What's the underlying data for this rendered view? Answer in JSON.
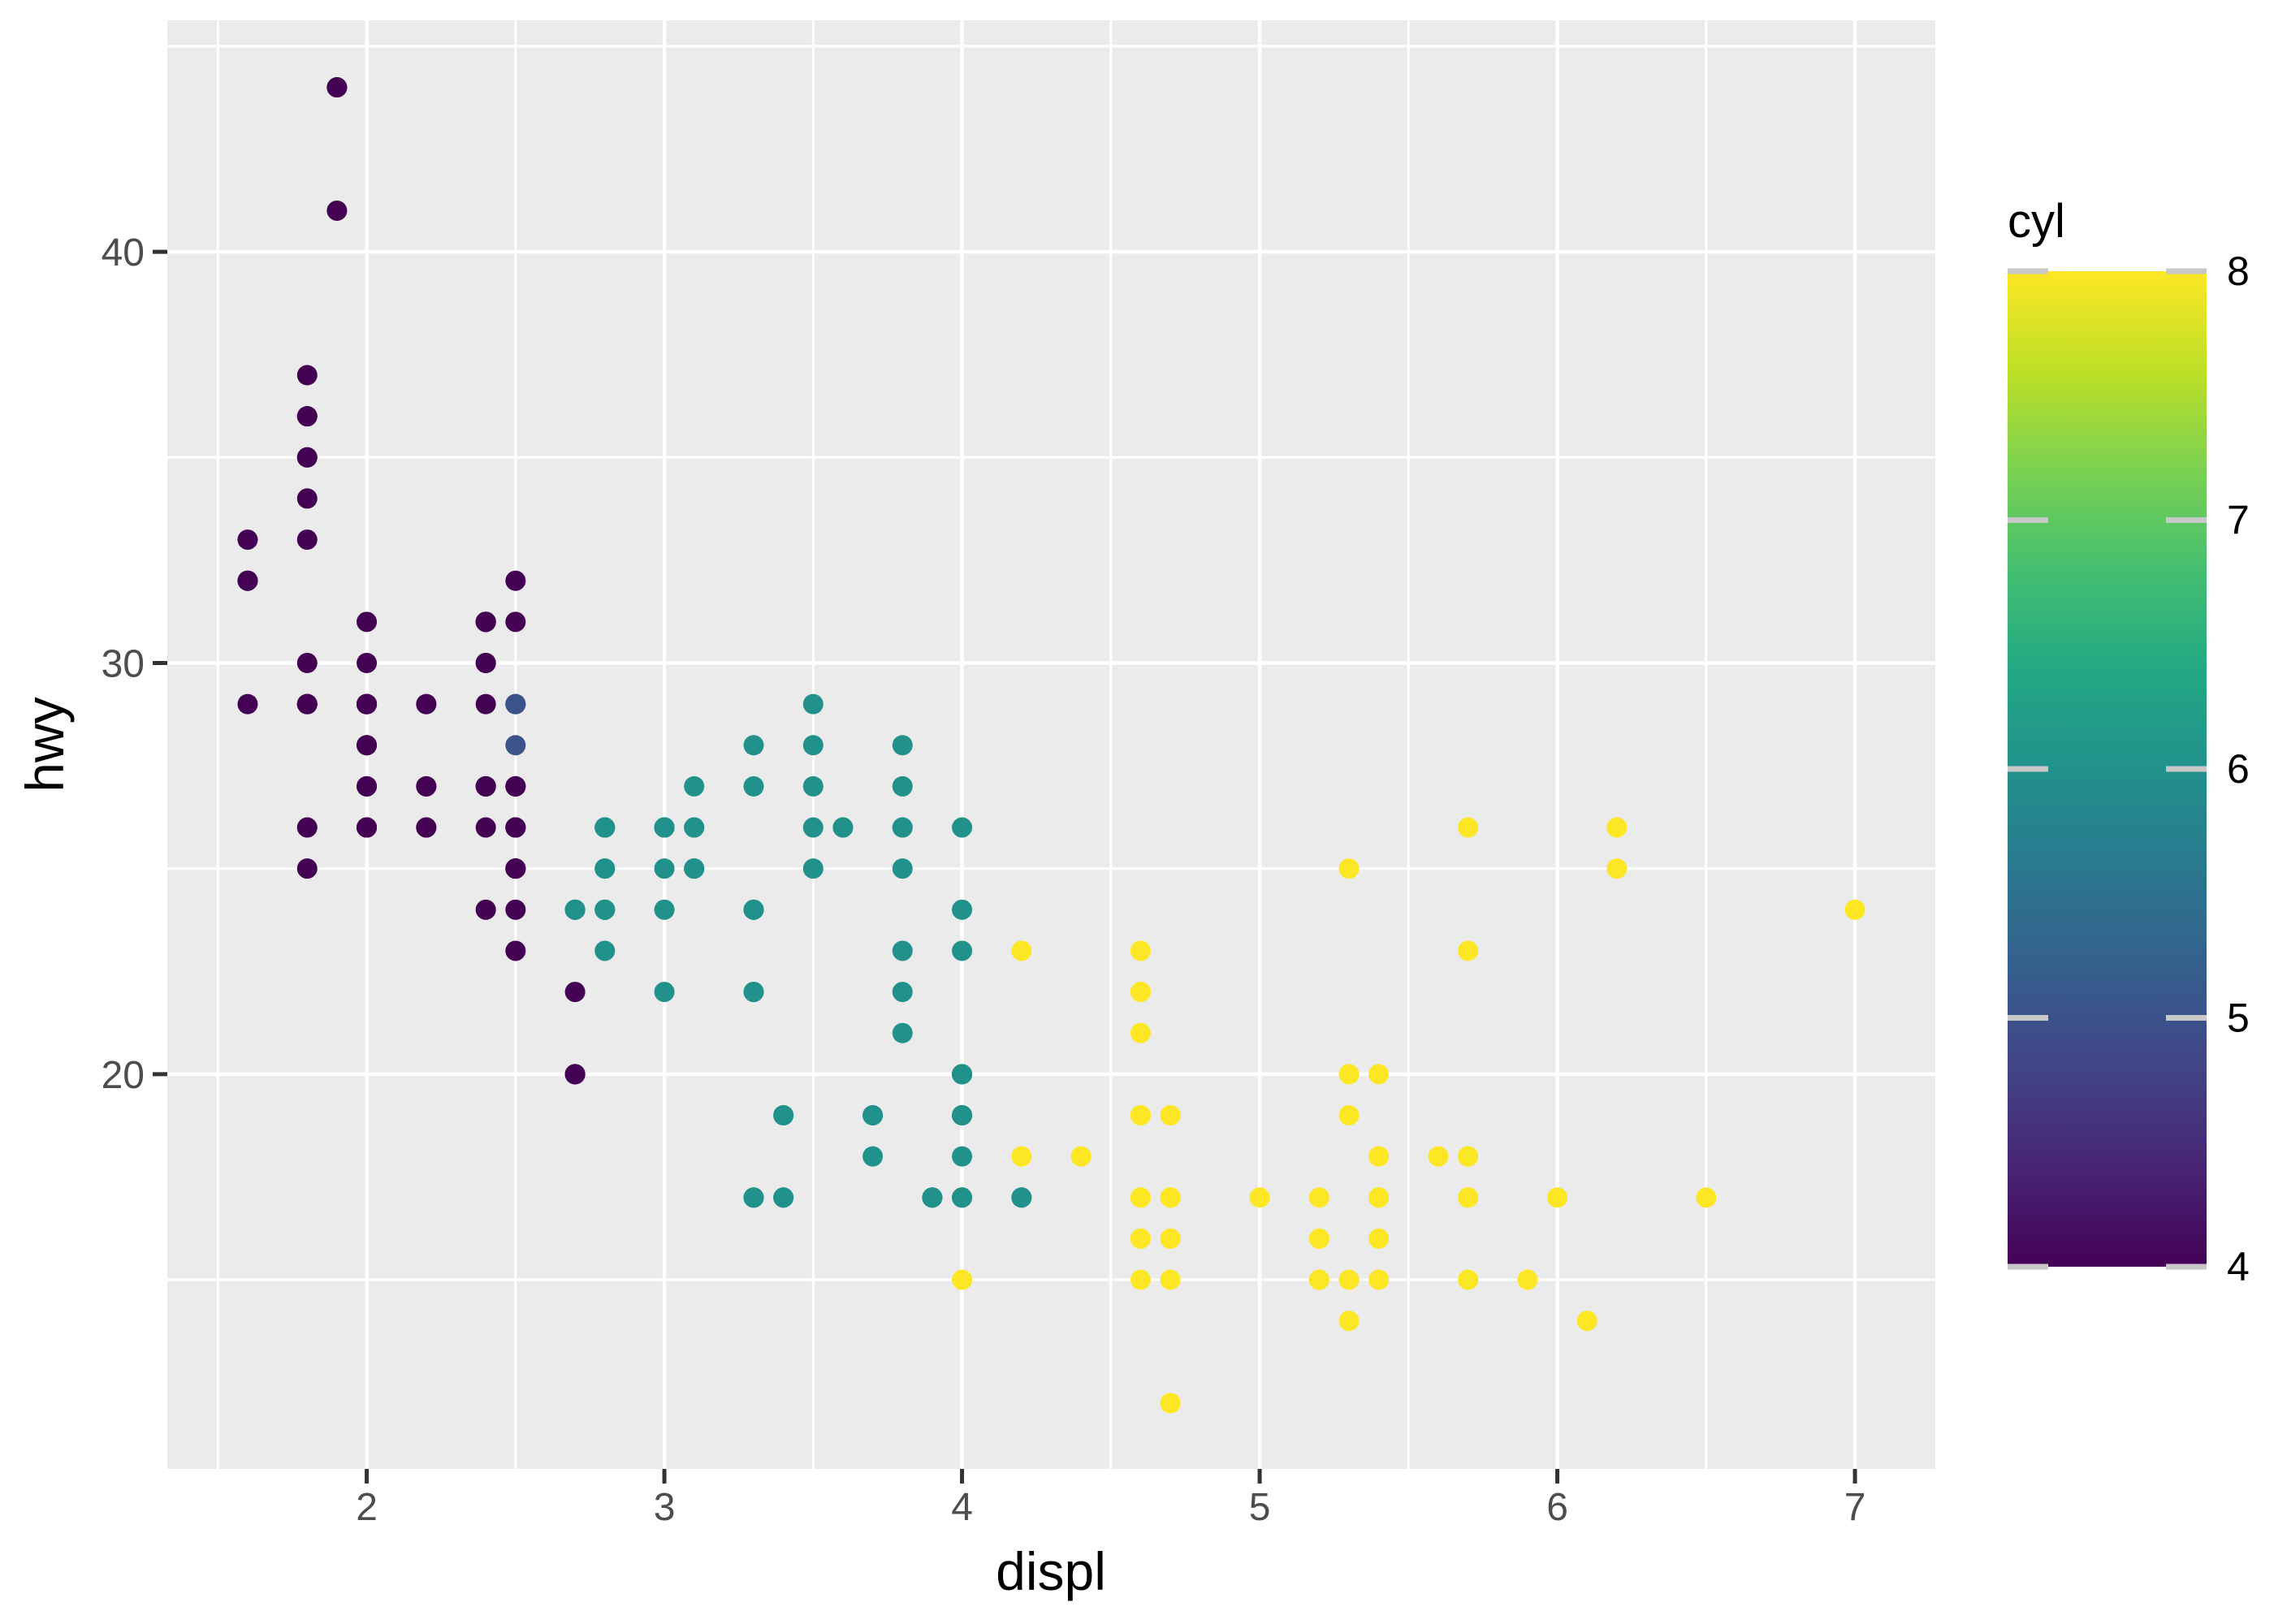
{
  "chart_data": {
    "type": "scatter",
    "title": "",
    "xlabel": "displ",
    "ylabel": "hwy",
    "xlim": [
      1.33,
      7.27
    ],
    "ylim": [
      10.4,
      45.63
    ],
    "x_major_ticks": [
      2,
      3,
      4,
      5,
      6,
      7
    ],
    "x_major_labels": [
      "2",
      "3",
      "4",
      "5",
      "6",
      "7"
    ],
    "x_minor_ticks": [
      1.5,
      2.5,
      3.5,
      4.5,
      5.5,
      6.5
    ],
    "y_major_ticks": [
      20,
      30,
      40
    ],
    "y_major_labels": [
      "20",
      "30",
      "40"
    ],
    "y_minor_ticks": [
      15,
      25,
      35,
      45
    ],
    "grid": "on",
    "legend_position": "right",
    "series_name": "cyl",
    "color_scale": "viridis-continuous",
    "points_format": [
      "displ",
      "hwy",
      "cyl"
    ],
    "points": [
      [
        1.8,
        29,
        4
      ],
      [
        1.8,
        29,
        4
      ],
      [
        2.0,
        31,
        4
      ],
      [
        2.0,
        30,
        4
      ],
      [
        2.8,
        26,
        6
      ],
      [
        2.8,
        26,
        6
      ],
      [
        3.1,
        27,
        6
      ],
      [
        1.8,
        26,
        4
      ],
      [
        1.8,
        25,
        4
      ],
      [
        2.0,
        28,
        4
      ],
      [
        2.0,
        27,
        4
      ],
      [
        2.8,
        25,
        6
      ],
      [
        2.8,
        25,
        6
      ],
      [
        3.1,
        25,
        6
      ],
      [
        3.1,
        25,
        6
      ],
      [
        2.8,
        24,
        6
      ],
      [
        3.1,
        25,
        6
      ],
      [
        4.2,
        23,
        8
      ],
      [
        5.3,
        20,
        8
      ],
      [
        5.3,
        15,
        8
      ],
      [
        5.3,
        20,
        8
      ],
      [
        5.7,
        17,
        8
      ],
      [
        6.0,
        17,
        8
      ],
      [
        5.7,
        26,
        8
      ],
      [
        5.7,
        23,
        8
      ],
      [
        6.2,
        26,
        8
      ],
      [
        6.2,
        25,
        8
      ],
      [
        7.0,
        24,
        8
      ],
      [
        5.3,
        19,
        8
      ],
      [
        5.3,
        14,
        8
      ],
      [
        5.7,
        15,
        8
      ],
      [
        6.5,
        17,
        8
      ],
      [
        2.4,
        27,
        4
      ],
      [
        2.4,
        30,
        4
      ],
      [
        3.1,
        26,
        6
      ],
      [
        3.5,
        29,
        6
      ],
      [
        3.6,
        26,
        6
      ],
      [
        2.4,
        24,
        4
      ],
      [
        3.0,
        24,
        6
      ],
      [
        3.3,
        22,
        6
      ],
      [
        3.3,
        22,
        6
      ],
      [
        3.3,
        24,
        6
      ],
      [
        3.3,
        24,
        6
      ],
      [
        3.3,
        17,
        6
      ],
      [
        3.8,
        22,
        6
      ],
      [
        3.8,
        21,
        6
      ],
      [
        3.8,
        23,
        6
      ],
      [
        4.0,
        23,
        6
      ],
      [
        3.7,
        19,
        6
      ],
      [
        3.7,
        18,
        6
      ],
      [
        3.9,
        17,
        6
      ],
      [
        3.9,
        17,
        6
      ],
      [
        4.7,
        19,
        8
      ],
      [
        4.7,
        19,
        8
      ],
      [
        4.7,
        12,
        8
      ],
      [
        5.2,
        17,
        8
      ],
      [
        5.2,
        15,
        8
      ],
      [
        3.9,
        17,
        6
      ],
      [
        4.7,
        17,
        8
      ],
      [
        4.7,
        12,
        8
      ],
      [
        4.7,
        17,
        8
      ],
      [
        5.2,
        16,
        8
      ],
      [
        5.7,
        18,
        8
      ],
      [
        5.9,
        15,
        8
      ],
      [
        4.7,
        16,
        8
      ],
      [
        4.7,
        12,
        8
      ],
      [
        4.7,
        17,
        8
      ],
      [
        4.7,
        17,
        8
      ],
      [
        4.7,
        16,
        8
      ],
      [
        4.7,
        12,
        8
      ],
      [
        5.2,
        15,
        8
      ],
      [
        5.2,
        16,
        8
      ],
      [
        5.7,
        17,
        8
      ],
      [
        5.9,
        15,
        8
      ],
      [
        4.6,
        17,
        8
      ],
      [
        5.4,
        17,
        8
      ],
      [
        5.4,
        18,
        8
      ],
      [
        4.0,
        17,
        6
      ],
      [
        4.0,
        19,
        6
      ],
      [
        4.0,
        17,
        6
      ],
      [
        4.0,
        19,
        6
      ],
      [
        4.6,
        19,
        8
      ],
      [
        4.2,
        17,
        6
      ],
      [
        4.2,
        17,
        6
      ],
      [
        4.6,
        16,
        8
      ],
      [
        4.6,
        16,
        8
      ],
      [
        4.6,
        17,
        8
      ],
      [
        5.4,
        15,
        8
      ],
      [
        5.4,
        17,
        8
      ],
      [
        3.8,
        26,
        6
      ],
      [
        3.8,
        25,
        6
      ],
      [
        4.0,
        26,
        6
      ],
      [
        4.0,
        24,
        6
      ],
      [
        4.6,
        21,
        8
      ],
      [
        4.6,
        22,
        8
      ],
      [
        4.6,
        23,
        8
      ],
      [
        4.6,
        22,
        8
      ],
      [
        5.4,
        20,
        8
      ],
      [
        1.6,
        33,
        4
      ],
      [
        1.6,
        32,
        4
      ],
      [
        1.6,
        32,
        4
      ],
      [
        1.6,
        29,
        4
      ],
      [
        1.6,
        32,
        4
      ],
      [
        1.8,
        34,
        4
      ],
      [
        1.8,
        36,
        4
      ],
      [
        1.8,
        36,
        4
      ],
      [
        2.0,
        29,
        4
      ],
      [
        2.4,
        26,
        4
      ],
      [
        2.4,
        27,
        4
      ],
      [
        2.4,
        30,
        4
      ],
      [
        2.4,
        31,
        4
      ],
      [
        2.5,
        26,
        6
      ],
      [
        2.5,
        26,
        6
      ],
      [
        3.3,
        28,
        6
      ],
      [
        2.0,
        26,
        4
      ],
      [
        2.0,
        29,
        4
      ],
      [
        2.0,
        28,
        4
      ],
      [
        2.0,
        27,
        4
      ],
      [
        2.7,
        24,
        6
      ],
      [
        2.7,
        24,
        6
      ],
      [
        2.7,
        24,
        6
      ],
      [
        3.0,
        22,
        6
      ],
      [
        3.7,
        19,
        6
      ],
      [
        4.0,
        20,
        6
      ],
      [
        4.7,
        17,
        8
      ],
      [
        4.7,
        12,
        8
      ],
      [
        4.7,
        19,
        8
      ],
      [
        5.7,
        18,
        8
      ],
      [
        6.1,
        14,
        8
      ],
      [
        4.0,
        15,
        8
      ],
      [
        4.2,
        18,
        8
      ],
      [
        4.4,
        18,
        8
      ],
      [
        4.6,
        15,
        8
      ],
      [
        5.4,
        17,
        8
      ],
      [
        5.4,
        16,
        8
      ],
      [
        5.4,
        18,
        8
      ],
      [
        4.0,
        17,
        6
      ],
      [
        4.0,
        19,
        6
      ],
      [
        4.6,
        19,
        8
      ],
      [
        5.0,
        17,
        8
      ],
      [
        2.4,
        29,
        4
      ],
      [
        2.4,
        27,
        4
      ],
      [
        2.5,
        31,
        4
      ],
      [
        2.5,
        32,
        4
      ],
      [
        3.5,
        27,
        6
      ],
      [
        3.5,
        26,
        6
      ],
      [
        3.0,
        26,
        6
      ],
      [
        3.0,
        25,
        6
      ],
      [
        3.5,
        25,
        6
      ],
      [
        3.3,
        17,
        6
      ],
      [
        3.3,
        17,
        6
      ],
      [
        4.0,
        20,
        6
      ],
      [
        5.6,
        18,
        8
      ],
      [
        3.1,
        26,
        6
      ],
      [
        3.8,
        26,
        6
      ],
      [
        3.8,
        27,
        6
      ],
      [
        3.8,
        28,
        6
      ],
      [
        5.3,
        25,
        8
      ],
      [
        2.5,
        25,
        4
      ],
      [
        2.5,
        24,
        4
      ],
      [
        2.5,
        27,
        4
      ],
      [
        2.5,
        25,
        4
      ],
      [
        2.5,
        26,
        4
      ],
      [
        2.5,
        23,
        4
      ],
      [
        2.2,
        26,
        4
      ],
      [
        2.2,
        26,
        4
      ],
      [
        2.5,
        26,
        4
      ],
      [
        2.5,
        26,
        4
      ],
      [
        2.5,
        25,
        4
      ],
      [
        2.5,
        27,
        4
      ],
      [
        2.5,
        27,
        4
      ],
      [
        2.5,
        25,
        4
      ],
      [
        2.7,
        20,
        4
      ],
      [
        2.7,
        20,
        4
      ],
      [
        3.4,
        19,
        6
      ],
      [
        3.4,
        17,
        6
      ],
      [
        4.0,
        20,
        6
      ],
      [
        4.7,
        17,
        8
      ],
      [
        2.2,
        29,
        4
      ],
      [
        2.2,
        27,
        4
      ],
      [
        2.4,
        31,
        4
      ],
      [
        2.4,
        31,
        4
      ],
      [
        3.0,
        26,
        6
      ],
      [
        3.0,
        26,
        6
      ],
      [
        3.5,
        28,
        6
      ],
      [
        2.2,
        27,
        4
      ],
      [
        2.2,
        29,
        4
      ],
      [
        2.4,
        31,
        4
      ],
      [
        2.4,
        31,
        4
      ],
      [
        3.0,
        26,
        6
      ],
      [
        3.0,
        26,
        6
      ],
      [
        3.3,
        27,
        6
      ],
      [
        1.8,
        30,
        4
      ],
      [
        1.8,
        33,
        4
      ],
      [
        1.8,
        35,
        4
      ],
      [
        1.8,
        37,
        4
      ],
      [
        1.8,
        35,
        4
      ],
      [
        4.7,
        15,
        8
      ],
      [
        5.7,
        18,
        8
      ],
      [
        2.7,
        20,
        4
      ],
      [
        2.7,
        20,
        4
      ],
      [
        2.7,
        22,
        4
      ],
      [
        3.4,
        17,
        6
      ],
      [
        3.4,
        19,
        6
      ],
      [
        4.0,
        18,
        6
      ],
      [
        4.0,
        20,
        6
      ],
      [
        2.0,
        29,
        4
      ],
      [
        2.0,
        26,
        4
      ],
      [
        2.0,
        29,
        4
      ],
      [
        2.0,
        29,
        4
      ],
      [
        2.8,
        24,
        6
      ],
      [
        1.9,
        44,
        4
      ],
      [
        2.0,
        29,
        4
      ],
      [
        2.0,
        26,
        4
      ],
      [
        2.0,
        29,
        4
      ],
      [
        2.0,
        29,
        4
      ],
      [
        2.5,
        29,
        5
      ],
      [
        2.5,
        29,
        5
      ],
      [
        2.8,
        23,
        6
      ],
      [
        2.8,
        24,
        6
      ],
      [
        1.9,
        44,
        4
      ],
      [
        1.9,
        41,
        4
      ],
      [
        2.0,
        29,
        4
      ],
      [
        2.0,
        26,
        4
      ],
      [
        2.5,
        28,
        5
      ],
      [
        2.5,
        29,
        5
      ],
      [
        1.8,
        29,
        4
      ],
      [
        1.8,
        29,
        4
      ],
      [
        2.0,
        28,
        4
      ],
      [
        2.0,
        29,
        4
      ],
      [
        2.8,
        26,
        6
      ],
      [
        2.8,
        26,
        6
      ],
      [
        3.6,
        26,
        6
      ]
    ],
    "cyl_colors": {
      "4": "#440154",
      "5": "#3b528b",
      "6": "#21918c",
      "8": "#fde725"
    },
    "legend": {
      "title": "cyl",
      "type": "colorbar",
      "domain": [
        4,
        8
      ],
      "tick_values": [
        4,
        5,
        6,
        7,
        8
      ],
      "tick_labels": [
        "4",
        "5",
        "6",
        "7",
        "8"
      ],
      "gradient_stops": [
        {
          "t": 0.0,
          "color": "#440154"
        },
        {
          "t": 0.1,
          "color": "#482475"
        },
        {
          "t": 0.2,
          "color": "#414487"
        },
        {
          "t": 0.3,
          "color": "#355f8d"
        },
        {
          "t": 0.4,
          "color": "#2a788e"
        },
        {
          "t": 0.5,
          "color": "#21918c"
        },
        {
          "t": 0.6,
          "color": "#22a884"
        },
        {
          "t": 0.7,
          "color": "#44bf70"
        },
        {
          "t": 0.8,
          "color": "#7ad151"
        },
        {
          "t": 0.9,
          "color": "#bddf26"
        },
        {
          "t": 1.0,
          "color": "#fde725"
        }
      ]
    }
  },
  "theme": {
    "panel_bg": "#ebebeb",
    "grid_color": "#ffffff",
    "tick_mark_color": "#333333",
    "tick_label_color": "#4d4d4d",
    "axis_title_color": "#000000",
    "legend_tick_color": "#c8c8c8",
    "point_radius": 12.5
  }
}
